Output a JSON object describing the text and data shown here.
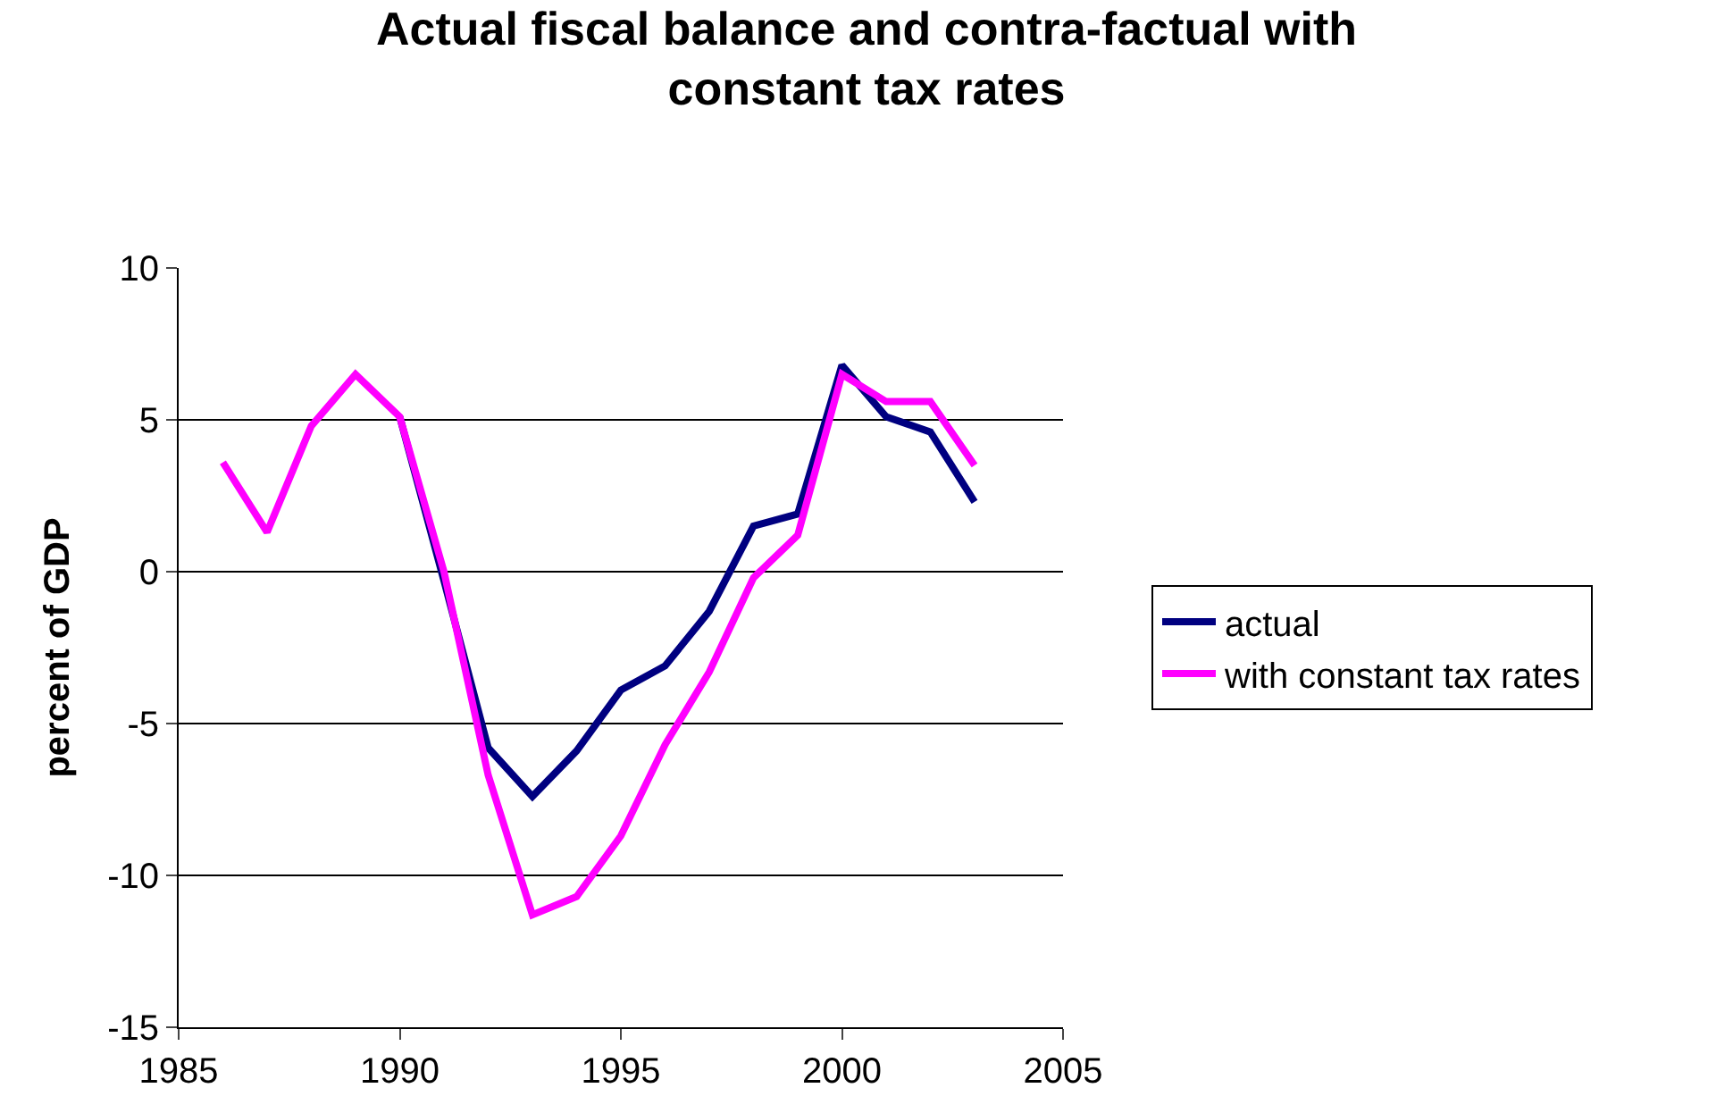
{
  "chart_data": {
    "type": "line",
    "title": "Actual fiscal balance and contra-factual with constant tax rates",
    "ylabel": "percent of GDP",
    "x": [
      1986,
      1987,
      1988,
      1989,
      1990,
      1991,
      1992,
      1993,
      1994,
      1995,
      1996,
      1997,
      1998,
      1999,
      2000,
      2001,
      2002,
      2003
    ],
    "series": [
      {
        "name": "actual",
        "color": "#000080",
        "values": [
          null,
          null,
          null,
          null,
          5.1,
          -0.3,
          -5.8,
          -7.4,
          -5.9,
          -3.9,
          -3.1,
          -1.3,
          1.5,
          1.9,
          6.8,
          5.1,
          4.6,
          2.3
        ]
      },
      {
        "name": "with constant tax rates",
        "color": "#ff00ff",
        "values": [
          3.6,
          1.3,
          4.8,
          6.5,
          5.1,
          0.0,
          -6.7,
          -11.3,
          -10.7,
          -8.7,
          -5.7,
          -3.3,
          -0.2,
          1.2,
          6.5,
          5.6,
          5.6,
          3.5
        ]
      }
    ],
    "xlim": [
      1985,
      2005
    ],
    "xticks": [
      1985,
      1990,
      1995,
      2000,
      2005
    ],
    "ylim": [
      -15,
      10
    ],
    "yticks": [
      -15,
      -10,
      -5,
      0,
      5,
      10
    ],
    "grid": "y",
    "legend": "right",
    "marker": "none",
    "line_style": "solid"
  }
}
